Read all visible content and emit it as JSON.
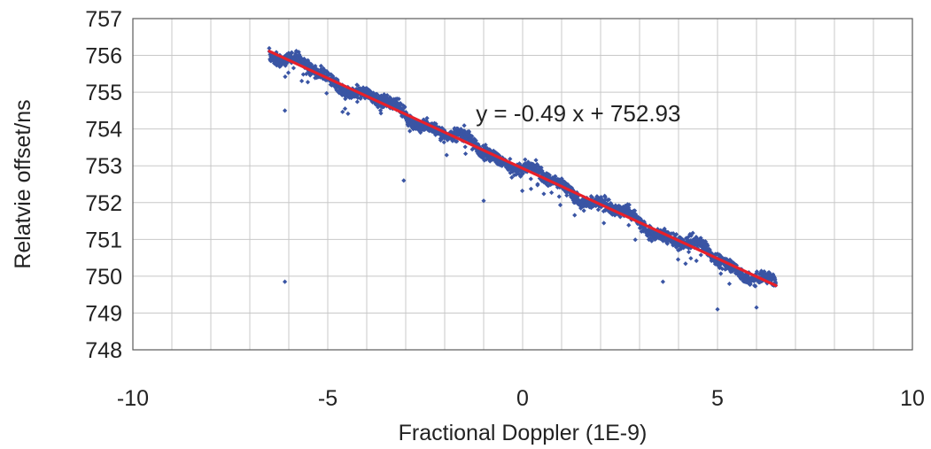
{
  "chart_data": {
    "type": "scatter",
    "title": "",
    "xlabel": "Fractional Doppler (1E-9)",
    "ylabel": "Relatvie offset/ns",
    "xlim": [
      -10,
      10
    ],
    "ylim": [
      748,
      757
    ],
    "x_ticks": [
      -10,
      -5,
      0,
      5,
      10
    ],
    "y_ticks": [
      748,
      749,
      750,
      751,
      752,
      753,
      754,
      755,
      756,
      757
    ],
    "x_tick_labels": [
      "-10",
      "-5",
      "0",
      "5",
      "10"
    ],
    "y_tick_labels": [
      "748",
      "749",
      "750",
      "751",
      "752",
      "753",
      "754",
      "755",
      "756",
      "757"
    ],
    "grid": true,
    "legend": "none",
    "series": [
      {
        "color": "#3a55a4",
        "marker": "diamond",
        "x_range": [
          -6.5,
          6.5
        ],
        "values_summary": "dense cloud of several thousand points along the trend line, spread about ±0.4 ns, a few outliers",
        "outliers": [
          {
            "x": -6.1,
            "y": 749.85
          },
          {
            "x": -6.1,
            "y": 754.5
          },
          {
            "x": -3.05,
            "y": 752.6
          },
          {
            "x": -1.0,
            "y": 752.05
          },
          {
            "x": 3.6,
            "y": 749.85
          },
          {
            "x": 5.0,
            "y": 749.1
          },
          {
            "x": 6.0,
            "y": 749.15
          }
        ]
      }
    ],
    "trendline": {
      "color": "#e8202a",
      "slope": -0.49,
      "intercept": 752.93,
      "x_range": [
        -6.5,
        6.5
      ]
    },
    "annotations": [
      {
        "text": "y = -0.49 x + 752.93",
        "x": -1.2,
        "y": 754.5
      }
    ]
  }
}
